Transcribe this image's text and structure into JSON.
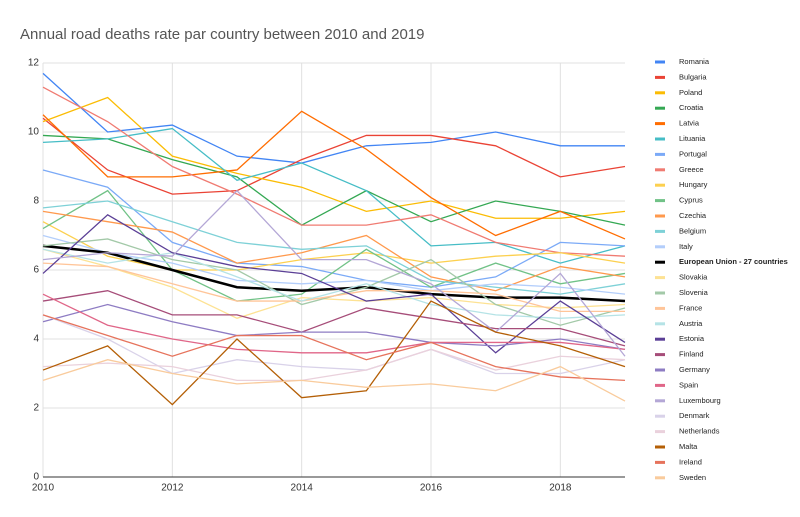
{
  "chart_data": {
    "type": "line",
    "title": "Annual road deaths rate par country between 2010 and 2019",
    "x": [
      2010,
      2011,
      2012,
      2013,
      2014,
      2015,
      2016,
      2017,
      2018,
      2019
    ],
    "xlim": [
      2010,
      2019
    ],
    "xticks": [
      2010,
      2012,
      2014,
      2016,
      2018
    ],
    "ylim": [
      0,
      12
    ],
    "yticks": [
      0,
      2,
      4,
      6,
      8,
      10,
      12
    ],
    "grid": true,
    "legend": "right",
    "series": [
      {
        "name": "Romania",
        "color": "#4285f4",
        "values": [
          11.7,
          10.0,
          10.2,
          9.3,
          9.1,
          9.6,
          9.7,
          10.0,
          9.6,
          9.6
        ]
      },
      {
        "name": "Bulgaria",
        "color": "#ea4335",
        "values": [
          10.4,
          8.9,
          8.2,
          8.3,
          9.2,
          9.9,
          9.9,
          9.6,
          8.7,
          9.0
        ]
      },
      {
        "name": "Poland",
        "color": "#fbbc04",
        "values": [
          10.3,
          11.0,
          9.3,
          8.8,
          8.4,
          7.7,
          8.0,
          7.5,
          7.5,
          7.7
        ]
      },
      {
        "name": "Croatia",
        "color": "#34a853",
        "values": [
          9.9,
          9.8,
          9.2,
          8.7,
          7.3,
          8.3,
          7.4,
          8.0,
          7.7,
          7.3
        ]
      },
      {
        "name": "Latvia",
        "color": "#ff6d01",
        "values": [
          10.5,
          8.7,
          8.7,
          8.9,
          10.6,
          9.5,
          8.1,
          7.0,
          7.7,
          6.9
        ]
      },
      {
        "name": "Lituania",
        "color": "#46bdc6",
        "values": [
          9.7,
          9.8,
          10.1,
          8.6,
          9.1,
          8.3,
          6.7,
          6.8,
          6.2,
          6.7
        ]
      },
      {
        "name": "Portugal",
        "color": "#7baaf7",
        "values": [
          8.9,
          8.4,
          6.8,
          6.2,
          6.1,
          5.7,
          5.5,
          5.8,
          6.8,
          6.7
        ]
      },
      {
        "name": "Greece",
        "color": "#f07b72",
        "values": [
          11.3,
          10.3,
          9.0,
          8.2,
          7.3,
          7.3,
          7.6,
          6.8,
          6.5,
          6.4
        ]
      },
      {
        "name": "Hungary",
        "color": "#fcd04f",
        "values": [
          7.4,
          6.4,
          6.0,
          6.0,
          6.3,
          6.5,
          6.2,
          6.4,
          6.5,
          6.2
        ]
      },
      {
        "name": "Cyprus",
        "color": "#71c287",
        "values": [
          7.2,
          8.3,
          6.0,
          5.1,
          5.3,
          6.6,
          5.5,
          6.2,
          5.6,
          5.9
        ]
      },
      {
        "name": "Czechia",
        "color": "#ff994d",
        "values": [
          7.7,
          7.4,
          7.1,
          6.2,
          6.5,
          7.0,
          5.8,
          5.4,
          6.1,
          5.8
        ]
      },
      {
        "name": "Belgium",
        "color": "#7ed1d7",
        "values": [
          7.8,
          8.0,
          7.4,
          6.8,
          6.6,
          6.7,
          5.7,
          5.5,
          5.3,
          5.6
        ]
      },
      {
        "name": "Italy",
        "color": "#b3cefb",
        "values": [
          7.0,
          6.5,
          6.2,
          5.7,
          5.6,
          5.7,
          5.4,
          5.6,
          5.5,
          5.3
        ]
      },
      {
        "name": "European Union - 27 countries",
        "color": "#000000",
        "width": 2.5,
        "values": [
          6.7,
          6.5,
          6.0,
          5.5,
          5.4,
          5.5,
          5.3,
          5.2,
          5.2,
          5.1
        ]
      },
      {
        "name": "Slovakia",
        "color": "#fde293",
        "values": [
          6.6,
          6.1,
          5.5,
          4.6,
          5.2,
          5.1,
          5.2,
          5.0,
          4.9,
          5.0
        ]
      },
      {
        "name": "Slovenia",
        "color": "#a3c9a8",
        "values": [
          6.7,
          6.9,
          6.3,
          6.0,
          5.0,
          5.5,
          6.3,
          5.0,
          4.4,
          4.9
        ]
      },
      {
        "name": "France",
        "color": "#ffc599",
        "values": [
          6.2,
          6.1,
          5.6,
          5.1,
          5.1,
          5.4,
          5.4,
          5.3,
          4.8,
          4.8
        ]
      },
      {
        "name": "Austria",
        "color": "#b5e3e6",
        "values": [
          6.6,
          6.2,
          6.5,
          5.8,
          5.1,
          5.6,
          5.0,
          4.7,
          4.6,
          4.7
        ]
      },
      {
        "name": "Estonia",
        "color": "#5b3f96",
        "values": [
          5.9,
          7.6,
          6.5,
          6.1,
          5.9,
          5.1,
          5.3,
          3.6,
          5.1,
          3.9
        ]
      },
      {
        "name": "Finland",
        "color": "#a64d79",
        "values": [
          5.1,
          5.4,
          4.7,
          4.7,
          4.2,
          4.9,
          4.6,
          4.3,
          4.3,
          3.8
        ]
      },
      {
        "name": "Germany",
        "color": "#8e7cc3",
        "values": [
          4.5,
          5.0,
          4.5,
          4.1,
          4.2,
          4.2,
          3.9,
          3.8,
          4.0,
          3.7
        ]
      },
      {
        "name": "Spain",
        "color": "#e06688",
        "values": [
          5.3,
          4.4,
          4.0,
          3.7,
          3.6,
          3.6,
          3.9,
          3.9,
          3.9,
          3.7
        ]
      },
      {
        "name": "Luxembourg",
        "color": "#b4a7d6",
        "values": [
          6.3,
          6.5,
          6.4,
          8.3,
          6.3,
          6.3,
          5.6,
          4.2,
          5.9,
          3.5
        ]
      },
      {
        "name": "Denmark",
        "color": "#d9d2e9",
        "values": [
          4.7,
          4.0,
          3.0,
          3.4,
          3.2,
          3.1,
          3.7,
          3.0,
          3.0,
          3.4
        ]
      },
      {
        "name": "Netherlands",
        "color": "#ead1dc",
        "values": [
          3.2,
          3.3,
          3.2,
          2.8,
          2.8,
          3.1,
          3.7,
          3.1,
          3.5,
          3.4
        ]
      },
      {
        "name": "Malta",
        "color": "#b45f06",
        "values": [
          3.1,
          3.8,
          2.1,
          4.0,
          2.3,
          2.5,
          5.1,
          4.2,
          3.8,
          3.2
        ]
      },
      {
        "name": "Ireland",
        "color": "#e6735c",
        "values": [
          4.7,
          4.1,
          3.5,
          4.1,
          4.1,
          3.4,
          3.9,
          3.2,
          2.9,
          2.8
        ]
      },
      {
        "name": "Sweden",
        "color": "#f9cb9c",
        "values": [
          2.8,
          3.4,
          3.0,
          2.7,
          2.8,
          2.6,
          2.7,
          2.5,
          3.2,
          2.2
        ]
      }
    ]
  }
}
